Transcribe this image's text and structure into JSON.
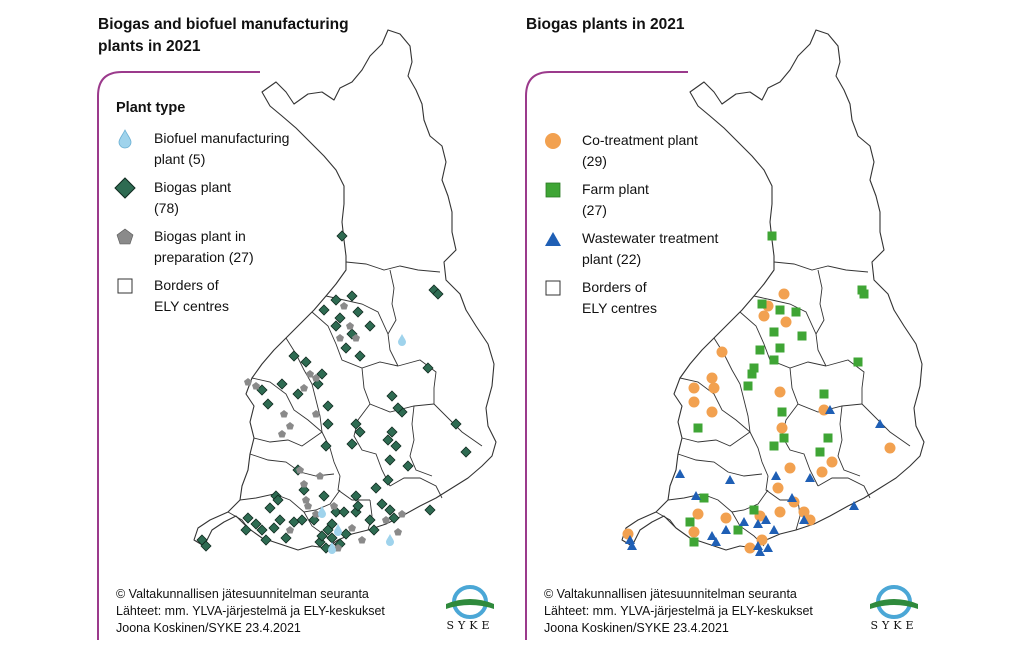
{
  "colors": {
    "frame": "#9b3a8c",
    "biogas": "#2e6b52",
    "biogas_stroke": "#0f2a1f",
    "prep": "#8a8a8a",
    "biofuel": "#9fd3ec",
    "co_treatment": "#f2a150",
    "farm": "#3fa535",
    "wastewater": "#1f5fb5",
    "border": "#333333",
    "syke_blue": "#4ba7d6",
    "syke_green": "#2f8a3c"
  },
  "left": {
    "title_line1": "Biogas and biofuel manufacturing",
    "title_line2": "plants in 2021",
    "legend_heading": "Plant type",
    "legend": [
      {
        "icon": "droplet",
        "line1": "Biofuel manufacturing",
        "line2": "plant (5)"
      },
      {
        "icon": "diamond",
        "line1": "Biogas plant",
        "line2": "(78)"
      },
      {
        "icon": "pentagon",
        "line1": "Biogas plant in",
        "line2": "preparation (27)"
      },
      {
        "icon": "square-outline",
        "line1": "Borders of",
        "line2": "ELY centres"
      }
    ],
    "credits": [
      "© Valtakunnallisen jätesuunnitelman seuranta",
      "Lähteet: mm. YLVA-järjestelmä ja ELY-keskukset",
      "Joona Koskinen/SYKE 23.4.2021"
    ],
    "logo_text": "SYKE"
  },
  "right": {
    "title": "Biogas plants in 2021",
    "legend": [
      {
        "icon": "circle",
        "line1": "Co-treatment plant",
        "line2": "(29)"
      },
      {
        "icon": "square",
        "line1": "Farm plant",
        "line2": "(27)"
      },
      {
        "icon": "triangle",
        "line1": "Wastewater treatment",
        "line2": "plant (22)"
      },
      {
        "icon": "square-outline",
        "line1": "Borders of",
        "line2": "ELY centres"
      }
    ],
    "credits": [
      "© Valtakunnallisen jätesuunnitelman seuranta",
      "Lähteet: mm. YLVA-järjestelmä ja ELY-keskukset",
      "Joona Koskinen/SYKE 23.4.2021"
    ],
    "logo_text": "SYKE"
  }
}
